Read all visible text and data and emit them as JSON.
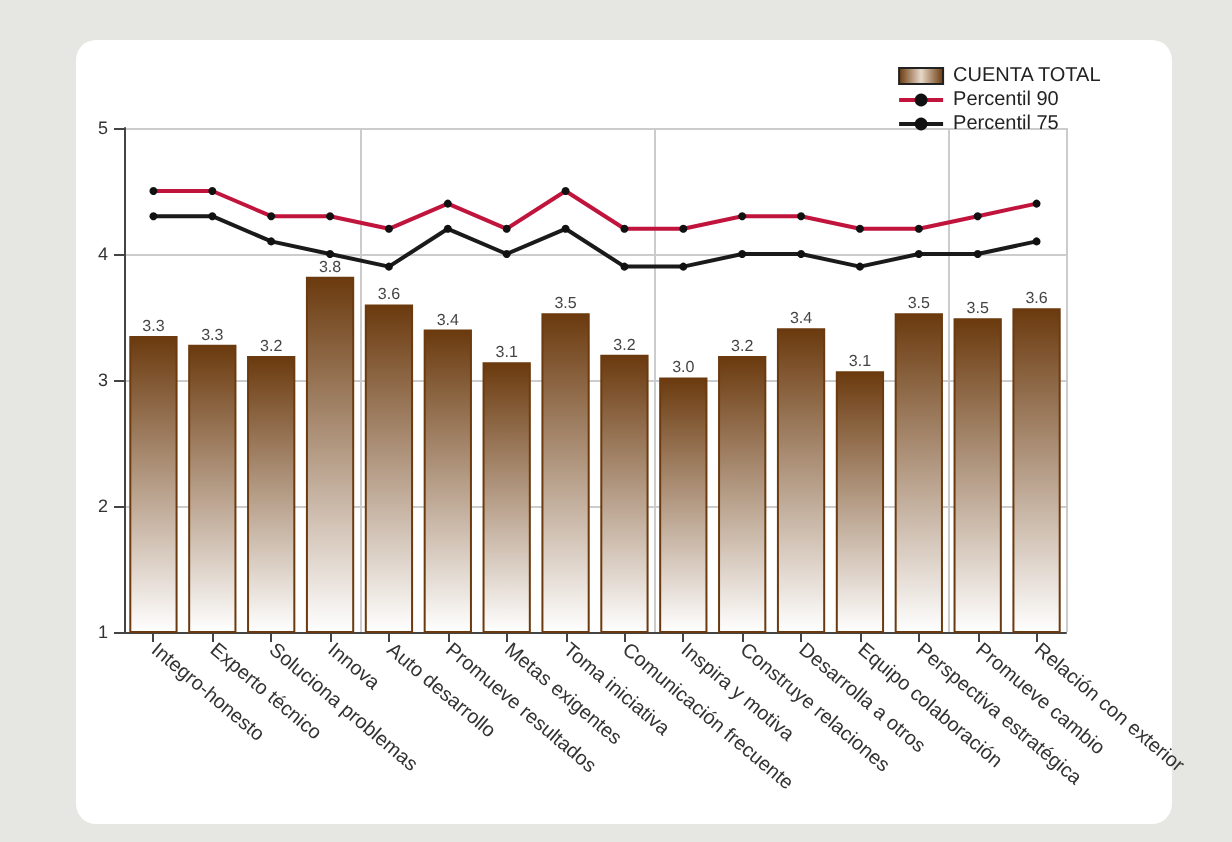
{
  "chart_data": {
    "type": "bar",
    "categories": [
      "Integro-honesto",
      "Experto técnico",
      "Soluciona problemas",
      "Innova",
      "Auto desarrollo",
      "Promueve resultados",
      "Metas exigentes",
      "Toma iniciativa",
      "Comunicación frecuente",
      "Inspira y motiva",
      "Construye relaciones",
      "Desarrolla a otros",
      "Equipo colaboración",
      "Perspectiva estratégica",
      "Promueve cambio",
      "Relación con exterior"
    ],
    "series": [
      {
        "name": "CUENTA TOTAL",
        "color": "#6b3a0e",
        "values": [
          3.35,
          3.28,
          3.19,
          3.82,
          3.6,
          3.4,
          3.14,
          3.53,
          3.2,
          3.02,
          3.19,
          3.41,
          3.07,
          3.53,
          3.49,
          3.57
        ],
        "value_labels": [
          "3.3",
          "3.3",
          "3.2",
          "3.8",
          "3.6",
          "3.4",
          "3.1",
          "3.5",
          "3.2",
          "3.0",
          "3.2",
          "3.4",
          "3.1",
          "3.5",
          "3.5",
          "3.6"
        ]
      },
      {
        "name": "Percentil 90",
        "type": "line",
        "color": "#c0143c",
        "values": [
          4.5,
          4.5,
          4.3,
          4.3,
          4.2,
          4.4,
          4.2,
          4.5,
          4.2,
          4.2,
          4.3,
          4.3,
          4.2,
          4.2,
          4.3,
          4.4
        ]
      },
      {
        "name": "Percentil 75",
        "type": "line",
        "color": "#1a1a1a",
        "values": [
          4.3,
          4.3,
          4.1,
          4.0,
          3.9,
          4.2,
          4.0,
          4.2,
          3.9,
          3.9,
          4.0,
          4.0,
          3.9,
          4.0,
          4.0,
          4.1
        ]
      }
    ],
    "ylim": [
      1,
      5
    ],
    "yticks": [
      1,
      2,
      3,
      4,
      5
    ],
    "grid": true,
    "legend": "top right",
    "marker": "circle",
    "line_style": "solid"
  }
}
